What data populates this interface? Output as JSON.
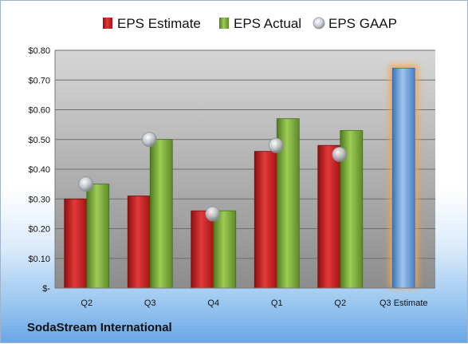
{
  "company": "SodaStream International",
  "chart_data": {
    "type": "bar",
    "categories": [
      "Q2",
      "Q3",
      "Q4",
      "Q1",
      "Q2",
      "Q3 Estimate"
    ],
    "series": [
      {
        "name": "EPS Estimate",
        "values": [
          0.3,
          0.31,
          0.26,
          0.46,
          0.48,
          0.74
        ],
        "color": "#cc1f1f"
      },
      {
        "name": "EPS Actual",
        "values": [
          0.35,
          0.5,
          0.26,
          0.57,
          0.53,
          null
        ],
        "color": "#7aa83a"
      },
      {
        "name": "EPS GAAP",
        "values": [
          0.35,
          0.5,
          0.25,
          0.48,
          0.45,
          null
        ],
        "color": "#b8bcc4"
      }
    ],
    "highlight": {
      "category_index": 5,
      "bar_color": "#6f9fd8",
      "glow_color": "#f5a646"
    },
    "ylim": [
      0,
      0.8
    ],
    "yticks": [
      0,
      0.1,
      0.2,
      0.3,
      0.4,
      0.5,
      0.6,
      0.7,
      0.8
    ],
    "ytick_labels": [
      "$-",
      "$0.10",
      "$0.20",
      "$0.30",
      "$0.40",
      "$0.50",
      "$0.60",
      "$0.70",
      "$0.80"
    ],
    "grid": true,
    "legend_position": "top"
  }
}
